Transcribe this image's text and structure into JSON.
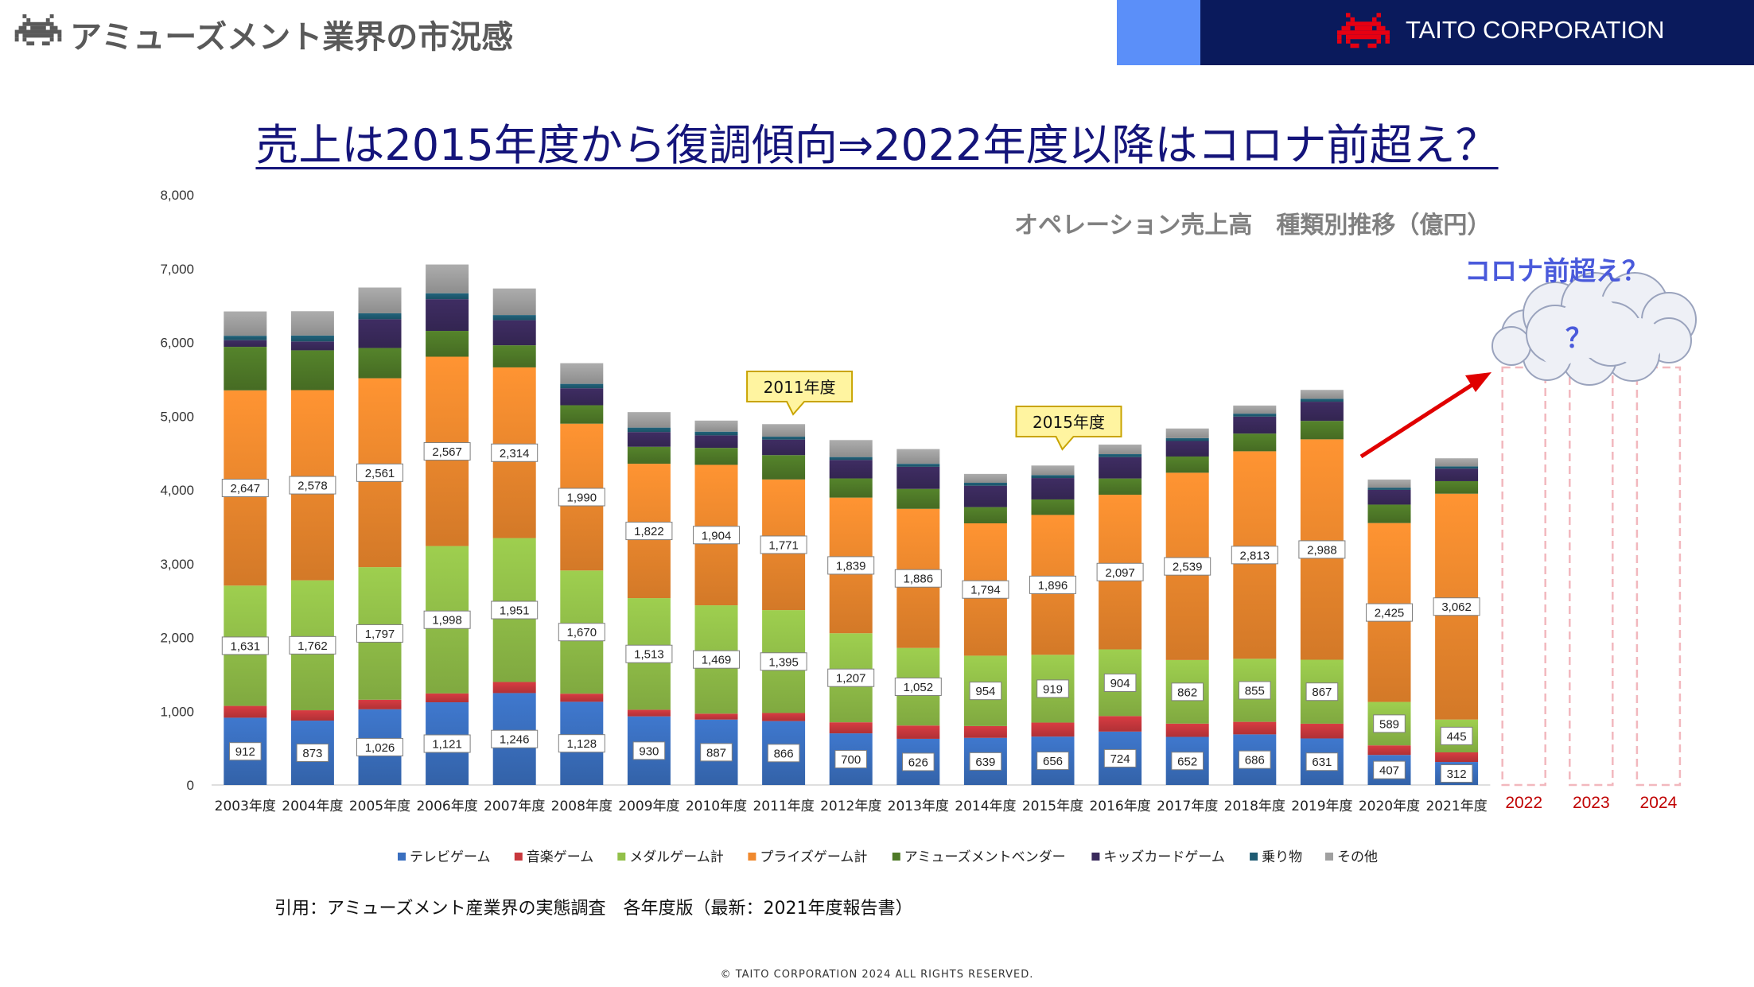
{
  "header": {
    "title": "アミューズメント業界の市況感",
    "company": "TAITO CORPORATION"
  },
  "headline": "売上は2015年度から復調傾向⇒2022年度以降はコロナ前超え？",
  "chart_subtitle": "オペレーション売上高　種類別推移（億円）",
  "corona_note": "コロナ前超え？",
  "question_mark": "？",
  "citation": "引用：アミューズメント産業界の実態調査　各年度版（最新：2021年度報告書）",
  "copyright": "© TAITO CORPORATION 2024 ALL RIGHTS RESERVED.",
  "colors": {
    "header_band": "#0a1a5c",
    "header_strip": "#5b8ff9",
    "headline": "#14147a",
    "future_years": "#c00000",
    "arrow": "#e00000"
  },
  "chart_data": {
    "type": "bar",
    "stacked": true,
    "title": "オペレーション売上高　種類別推移（億円）",
    "categories": [
      "2003年度",
      "2004年度",
      "2005年度",
      "2006年度",
      "2007年度",
      "2008年度",
      "2009年度",
      "2010年度",
      "2011年度",
      "2012年度",
      "2013年度",
      "2014年度",
      "2015年度",
      "2016年度",
      "2017年度",
      "2018年度",
      "2019年度",
      "2020年度",
      "2021年度"
    ],
    "future_categories": [
      "2022",
      "2023",
      "2024"
    ],
    "ylim": [
      0,
      8000
    ],
    "yticks": [
      0,
      1000,
      2000,
      3000,
      4000,
      5000,
      6000,
      7000,
      8000
    ],
    "ytick_labels": [
      "0",
      "1,000",
      "2,000",
      "3,000",
      "4,000",
      "5,000",
      "6,000",
      "7,000",
      "8,000"
    ],
    "legend_position": "bottom",
    "series": [
      {
        "name": "テレビゲーム",
        "color": "#3a6fbf",
        "labeled": true,
        "values": [
          912,
          873,
          1026,
          1121,
          1246,
          1128,
          930,
          887,
          866,
          700,
          626,
          639,
          656,
          724,
          652,
          686,
          631,
          407,
          312
        ]
      },
      {
        "name": "音楽ゲーム",
        "color": "#c8383d",
        "labeled": false,
        "values": [
          160,
          140,
          130,
          120,
          150,
          110,
          90,
          80,
          110,
          150,
          180,
          160,
          190,
          210,
          180,
          170,
          200,
          130,
          130
        ]
      },
      {
        "name": "メダルゲーム計",
        "color": "#92c049",
        "labeled": true,
        "values": [
          1631,
          1762,
          1797,
          1998,
          1951,
          1670,
          1513,
          1469,
          1395,
          1207,
          1052,
          954,
          919,
          904,
          862,
          855,
          867,
          589,
          445
        ]
      },
      {
        "name": "プライズゲーム計",
        "color": "#f0892e",
        "labeled": true,
        "values": [
          2647,
          2578,
          2561,
          2567,
          2314,
          1990,
          1822,
          1904,
          1771,
          1839,
          1886,
          1794,
          1896,
          2097,
          2539,
          2813,
          2988,
          2425,
          3062
        ]
      },
      {
        "name": "アミューズメントベンダー",
        "color": "#4f7a28",
        "labeled": false,
        "values": [
          590,
          540,
          410,
          350,
          300,
          250,
          230,
          230,
          330,
          260,
          270,
          220,
          210,
          220,
          220,
          240,
          250,
          250,
          170
        ]
      },
      {
        "name": "キッズカードゲーム",
        "color": "#3a2a5c",
        "labeled": false,
        "values": [
          90,
          120,
          390,
          430,
          340,
          230,
          200,
          170,
          210,
          250,
          300,
          290,
          290,
          290,
          210,
          230,
          260,
          200,
          170
        ]
      },
      {
        "name": "乗り物",
        "color": "#1f5c73",
        "labeled": false,
        "values": [
          60,
          80,
          80,
          80,
          70,
          60,
          60,
          50,
          40,
          40,
          40,
          40,
          40,
          40,
          40,
          40,
          40,
          30,
          30
        ]
      },
      {
        "name": "その他",
        "color": "#a0a0a0",
        "labeled": false,
        "values": [
          330,
          330,
          350,
          390,
          360,
          280,
          210,
          150,
          170,
          230,
          200,
          120,
          130,
          130,
          130,
          110,
          120,
          110,
          110
        ]
      }
    ],
    "annotations": [
      {
        "text": "2011年度",
        "category": "2011年度"
      },
      {
        "text": "2015年度",
        "category": "2015年度"
      }
    ]
  }
}
